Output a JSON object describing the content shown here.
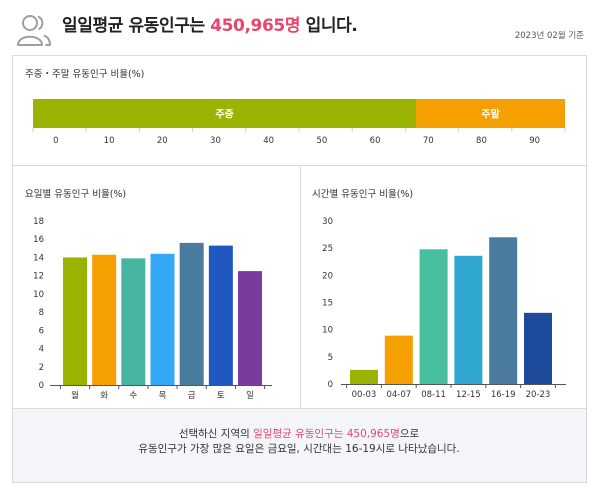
{
  "header": {
    "icon": "users-icon",
    "title_prefix": "일일평균 유동인구는 ",
    "title_highlight": "450,965명",
    "title_suffix": " 입니다.",
    "base_date": "2023년 02월 기준"
  },
  "colors": {
    "highlight": "#e8456b",
    "summary_background": "#f3f5f9"
  },
  "summary": {
    "line1_prefix": "선택하신 지역의 ",
    "line1_highlight": "일일평균 유동인구는 450,965명",
    "line1_suffix": "으로",
    "line2": "유동인구가 가장 많은 요일은 금요일, 시간대는 16-19시로 나타났습니다."
  },
  "chart_data": [
    {
      "type": "bar",
      "orientation": "horizontal-stacked",
      "title": "주중・주말 유동인구 비율(%)",
      "series": [
        {
          "name": "주중",
          "value": 72,
          "color": "#9ab300"
        },
        {
          "name": "주말",
          "value": 28,
          "color": "#f5a000"
        }
      ],
      "xlim": [
        0,
        100
      ],
      "x_ticks": [
        0,
        10,
        20,
        30,
        40,
        50,
        60,
        70,
        80,
        90
      ],
      "grid": false,
      "legend": "none"
    },
    {
      "type": "bar",
      "title": "요일별 유동인구 비율(%)",
      "categories": [
        "월",
        "화",
        "수",
        "목",
        "금",
        "토",
        "일"
      ],
      "values": [
        14.0,
        14.3,
        13.9,
        14.4,
        15.6,
        15.3,
        12.5
      ],
      "colors": [
        "#9ab300",
        "#f5a000",
        "#47b4a0",
        "#33a8f4",
        "#4a7b9c",
        "#1f58c0",
        "#7a3a9e"
      ],
      "ylim": [
        0,
        18
      ],
      "yticks": [
        0,
        2,
        4,
        6,
        8,
        10,
        12,
        14,
        16,
        18
      ],
      "grid": false,
      "legend": "none"
    },
    {
      "type": "bar",
      "title": "시간별 유동인구 비율(%)",
      "categories": [
        "00-03",
        "04-07",
        "08-11",
        "12-15",
        "16-19",
        "20-23"
      ],
      "values": [
        2.6,
        8.9,
        24.8,
        23.6,
        27.0,
        13.1
      ],
      "colors": [
        "#9ab300",
        "#f5a000",
        "#47bf9f",
        "#2fa6cf",
        "#4a7b9c",
        "#1e4a9c"
      ],
      "ylim": [
        0,
        30
      ],
      "yticks": [
        0,
        5,
        10,
        15,
        20,
        25,
        30
      ],
      "grid": false,
      "legend": "none"
    }
  ]
}
